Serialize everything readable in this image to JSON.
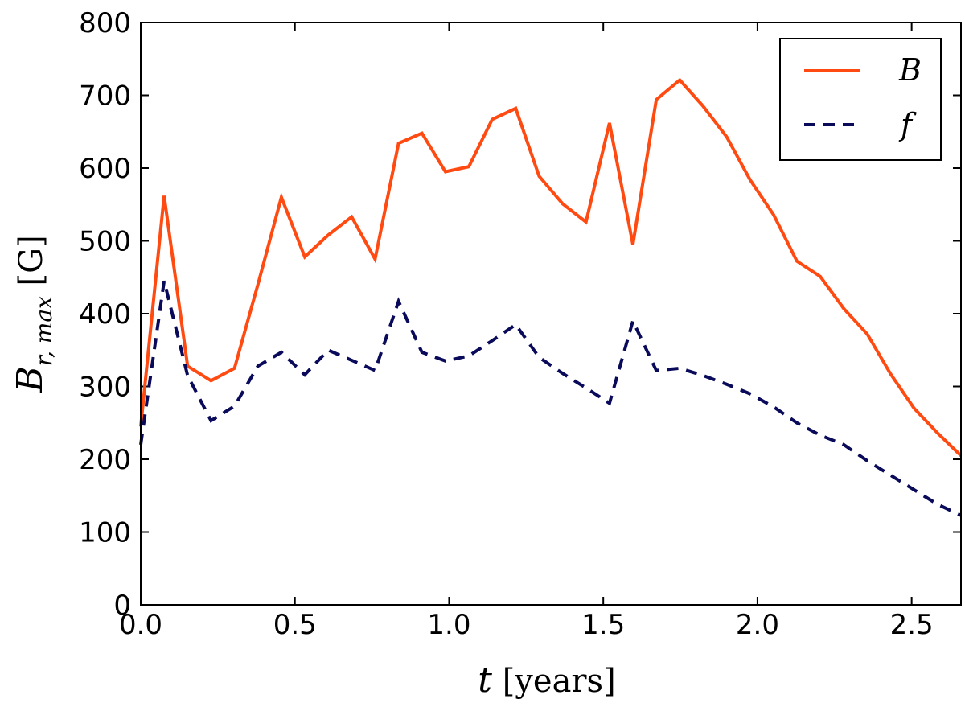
{
  "chart_data": {
    "type": "line",
    "title": "",
    "xlabel": "t [years]",
    "ylabel": "B_{r, max} [G]",
    "xlim": [
      0.0,
      2.66
    ],
    "ylim": [
      0,
      800
    ],
    "xticks": [
      0.0,
      0.5,
      1.0,
      1.5,
      2.0,
      2.5
    ],
    "xtick_labels": [
      "0.0",
      "0.5",
      "1.0",
      "1.5",
      "2.0",
      "2.5"
    ],
    "yticks": [
      0,
      100,
      200,
      300,
      400,
      500,
      600,
      700,
      800
    ],
    "ytick_labels": [
      "0",
      "100",
      "200",
      "300",
      "400",
      "500",
      "600",
      "700",
      "800"
    ],
    "grid": false,
    "legend_position": "top-right",
    "series": [
      {
        "name": "B",
        "color": "#ff4a12",
        "style": "solid",
        "x": [
          0.0,
          0.076,
          0.152,
          0.228,
          0.304,
          0.38,
          0.456,
          0.532,
          0.608,
          0.684,
          0.76,
          0.836,
          0.912,
          0.988,
          1.064,
          1.14,
          1.216,
          1.292,
          1.368,
          1.444,
          1.52,
          1.596,
          1.672,
          1.748,
          1.824,
          1.9,
          1.976,
          2.052,
          2.128,
          2.204,
          2.28,
          2.356,
          2.432,
          2.508,
          2.584,
          2.66
        ],
        "values": [
          245,
          562,
          328,
          308,
          325,
          440,
          560,
          478,
          508,
          533,
          475,
          634,
          648,
          595,
          602,
          667,
          682,
          589,
          551,
          526,
          662,
          495,
          694,
          721,
          685,
          643,
          584,
          536,
          472,
          451,
          407,
          372,
          317,
          270,
          236,
          205
        ]
      },
      {
        "name": "f",
        "color": "#0a0a5a",
        "style": "dashed",
        "x": [
          0.0,
          0.076,
          0.152,
          0.228,
          0.304,
          0.38,
          0.456,
          0.532,
          0.608,
          0.684,
          0.76,
          0.836,
          0.912,
          0.988,
          1.064,
          1.14,
          1.216,
          1.292,
          1.368,
          1.444,
          1.52,
          1.596,
          1.672,
          1.748,
          1.824,
          1.9,
          1.976,
          2.052,
          2.128,
          2.204,
          2.28,
          2.356,
          2.432,
          2.508,
          2.584,
          2.66
        ],
        "values": [
          220,
          445,
          315,
          253,
          273,
          328,
          347,
          316,
          350,
          336,
          322,
          417,
          347,
          335,
          342,
          363,
          385,
          340,
          318,
          298,
          277,
          390,
          322,
          325,
          315,
          303,
          290,
          272,
          250,
          233,
          220,
          198,
          178,
          158,
          138,
          123
        ]
      }
    ],
    "legend": [
      {
        "name": "B",
        "label": "B"
      },
      {
        "name": "f",
        "label": "f"
      }
    ]
  }
}
